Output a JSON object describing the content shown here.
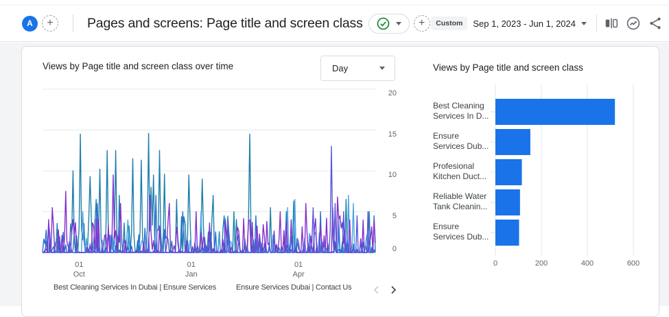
{
  "header": {
    "avatar_letter": "A",
    "title": "Pages and screens: Page title and screen class",
    "custom_label": "Custom",
    "date_range": "Sep 1, 2023 - Jun 1, 2024",
    "icons": {
      "add_comparison": "+",
      "add_metric": "+",
      "status_check": "check-circle",
      "ab_compare": "ab-compare",
      "insights": "insights",
      "share": "share"
    }
  },
  "left_chart": {
    "title": "Views by Page title and screen class over time",
    "interval_selector": "Day",
    "legend": [
      "Best Cleaning Services In Dubai | Ensure Services",
      "Ensure Services Dubai | Contact Us"
    ]
  },
  "right_chart": {
    "title": "Views by Page title and screen class"
  },
  "colors": {
    "accent_blue": "#1a73e8",
    "bar_blue": "#1a73e8",
    "grid": "#e6e6e6",
    "axis_text": "#5f6368"
  },
  "chart_data": [
    {
      "type": "line",
      "title": "Views by Page title and screen class over time",
      "x_range": "Sep 1, 2023 - Jun 1, 2024",
      "n_days": 274,
      "ylim": [
        0,
        20
      ],
      "yticks": [
        0,
        5,
        10,
        15,
        20
      ],
      "xticks": [
        {
          "day": 30,
          "label_top": "01",
          "label_bottom": "Oct"
        },
        {
          "day": 122,
          "label_top": "01",
          "label_bottom": "Jan"
        },
        {
          "day": 210,
          "label_top": "01",
          "label_bottom": "Apr"
        }
      ],
      "series": [
        {
          "name": "Best Cleaning Services In Dubai | Ensure Services",
          "color": "#1d7fad",
          "noise": {
            "seed": 11,
            "p": 0.5,
            "max": 5.0,
            "damp_after": 175,
            "damp": 0.3
          },
          "spikes": [
            [
              25,
              10
            ],
            [
              31,
              14.5
            ],
            [
              39,
              9.3
            ],
            [
              44,
              6.5
            ],
            [
              47,
              10.2
            ],
            [
              53,
              12.5
            ],
            [
              60,
              12.5
            ],
            [
              63,
              7
            ],
            [
              74,
              11.5
            ],
            [
              81,
              11.3
            ],
            [
              87,
              14.6
            ],
            [
              89,
              8
            ],
            [
              91,
              9.5
            ],
            [
              96,
              12.5
            ],
            [
              100,
              9.6
            ],
            [
              110,
              6.5
            ],
            [
              120,
              9.5
            ],
            [
              131,
              9
            ],
            [
              140,
              7
            ],
            [
              157,
              5
            ],
            [
              170,
              14.5
            ],
            [
              187,
              5.5
            ],
            [
              200,
              5
            ],
            [
              206,
              6.3
            ],
            [
              249,
              6.5
            ],
            [
              268,
              5
            ],
            [
              272,
              4.5
            ]
          ]
        },
        {
          "name": "Reliable Water Tank Cleanin...",
          "color": "#4ba3e3",
          "noise": {
            "seed": 23,
            "p": 0.28,
            "max": 2.5
          },
          "spikes": [
            [
              33,
              5
            ],
            [
              70,
              4
            ],
            [
              130,
              5
            ],
            [
              150,
              4.2
            ],
            [
              201,
              5.5
            ],
            [
              207,
              6.5
            ],
            [
              251,
              7
            ],
            [
              255,
              6
            ]
          ]
        },
        {
          "name": "Profesional Kitchen Duct...",
          "color": "#2a6fd4",
          "noise": {
            "seed": 37,
            "p": 0.32,
            "max": 3.0,
            "damp_after": 170,
            "damp": 0.5
          },
          "spikes": [
            [
              45,
              6
            ],
            [
              93,
              7
            ],
            [
              115,
              5
            ],
            [
              175,
              4.5
            ],
            [
              228,
              5
            ],
            [
              243,
              4
            ]
          ]
        },
        {
          "name": "Ensure Services Dubai | Contact Us",
          "color": "#8430ce",
          "noise": {
            "seed": 51,
            "p": 0.5,
            "max": 4.2
          },
          "spikes": [
            [
              8,
              5.5
            ],
            [
              19,
              7.5
            ],
            [
              58,
              9.5
            ],
            [
              64,
              6
            ],
            [
              88,
              7
            ],
            [
              104,
              6
            ],
            [
              126,
              5
            ],
            [
              170,
              4
            ],
            [
              195,
              5
            ],
            [
              216,
              6
            ],
            [
              233,
              4.2
            ],
            [
              238,
              5.5
            ],
            [
              242,
              6.8
            ],
            [
              244,
              4.5
            ],
            [
              252,
              4
            ],
            [
              272,
              4
            ]
          ]
        },
        {
          "name": "Ensure Services Dub...",
          "color": "#5658d8",
          "noise": {
            "seed": 67,
            "p": 0.3,
            "max": 2.0,
            "damp_before": 130,
            "damp": 0.3
          },
          "spikes": [
            [
              152,
              4
            ],
            [
              222,
              5.5
            ],
            [
              237,
              13
            ],
            [
              240,
              6
            ],
            [
              247,
              5
            ],
            [
              258,
              4.5
            ],
            [
              267,
              5
            ]
          ]
        }
      ]
    },
    {
      "type": "bar",
      "title": "Views by Page title and screen class",
      "orientation": "horizontal",
      "categories": [
        {
          "line1": "Best Cleaning",
          "line2": "Services In D..."
        },
        {
          "line1": "Ensure",
          "line2": "Services Dub..."
        },
        {
          "line1": "Profesional",
          "line2": "Kitchen Duct..."
        },
        {
          "line1": "Reliable Water",
          "line2": "Tank Cleanin..."
        },
        {
          "line1": "Ensure",
          "line2": "Services Dub..."
        }
      ],
      "values": [
        520,
        152,
        115,
        107,
        103
      ],
      "xlim": [
        0,
        700
      ],
      "xticks": [
        0,
        200,
        400,
        600
      ],
      "bar_color": "#1a73e8"
    }
  ]
}
